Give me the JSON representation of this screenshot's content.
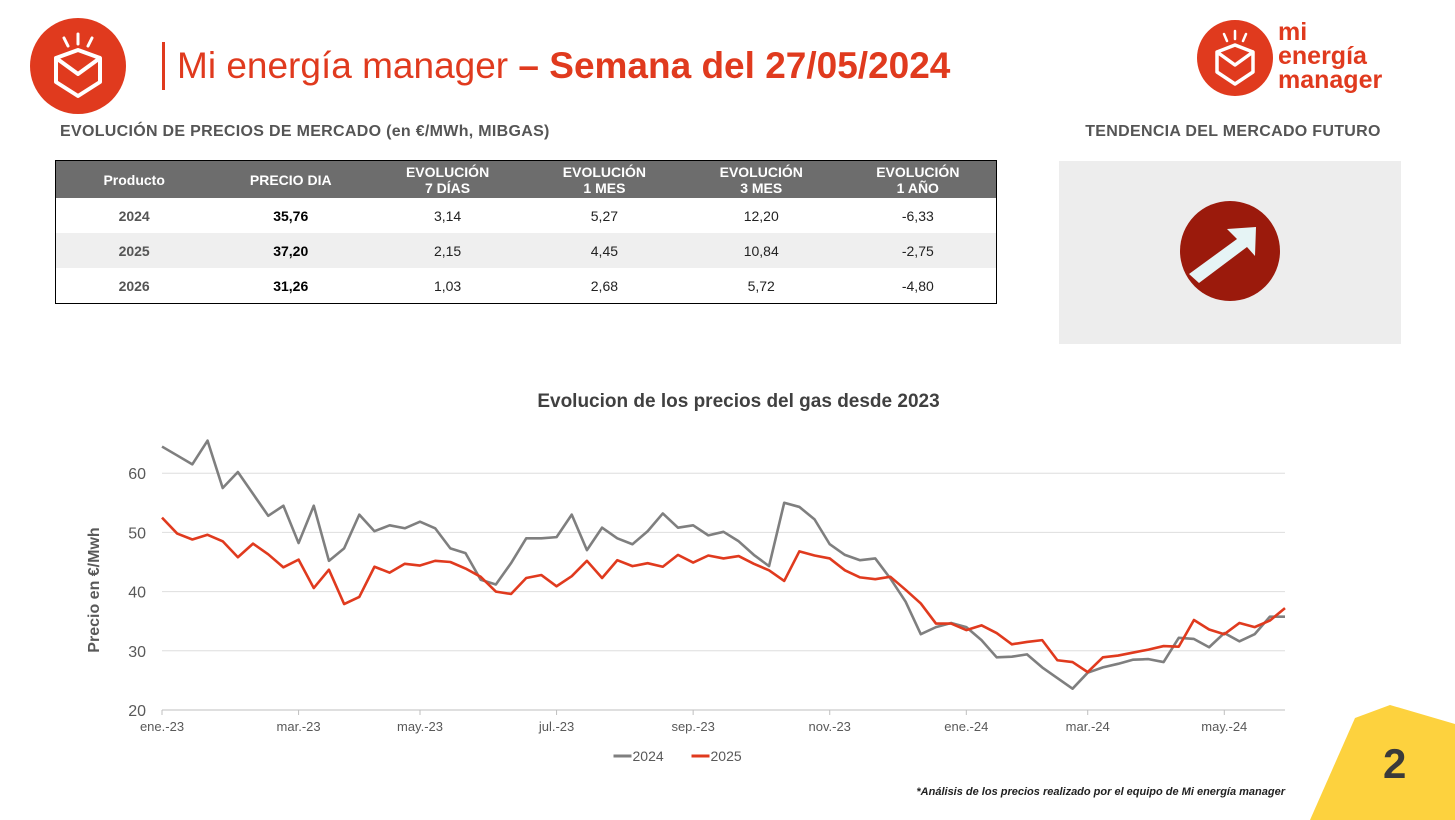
{
  "header": {
    "title": "Mi energía manager",
    "subtitle": "– Semana del 27/05/2024",
    "logo": [
      "mi",
      "energía",
      "manager"
    ],
    "page": "2"
  },
  "table": {
    "title": "EVOLUCIÓN DE PRECIOS DE MERCADO (en €/MWh, MIBGAS)",
    "columns": [
      [
        "Producto"
      ],
      [
        "PRECIO DIA"
      ],
      [
        "EVOLUCIÓN",
        "7 DÍAS"
      ],
      [
        "EVOLUCIÓN",
        "1 MES"
      ],
      [
        "EVOLUCIÓN",
        "3 MES"
      ],
      [
        "EVOLUCIÓN",
        "1 AÑO"
      ]
    ],
    "rows": [
      [
        "2024",
        "35,76",
        "3,14",
        "5,27",
        "12,20",
        "-6,33"
      ],
      [
        "2025",
        "37,20",
        "2,15",
        "4,45",
        "10,84",
        "-2,75"
      ],
      [
        "2026",
        "31,26",
        "1,03",
        "2,68",
        "5,72",
        "-4,80"
      ]
    ]
  },
  "trend": {
    "title": "TENDENCIA DEL MERCADO FUTURO"
  },
  "footnote": "*Análisis de los precios realizado por el equipo de Mi energía manager",
  "chart_data": {
    "type": "line",
    "title": "Evolucion de los precios del gas desde 2023",
    "y_label": "Precio en €/Mwh",
    "categories": [
      "ene.-23",
      null,
      null,
      null,
      null,
      null,
      null,
      null,
      null,
      "mar.-23",
      null,
      null,
      null,
      null,
      null,
      null,
      null,
      "may.-23",
      null,
      null,
      null,
      null,
      null,
      null,
      null,
      null,
      "jul.-23",
      null,
      null,
      null,
      null,
      null,
      null,
      null,
      null,
      "sep.-23",
      null,
      null,
      null,
      null,
      null,
      null,
      null,
      null,
      "nov.-23",
      null,
      null,
      null,
      null,
      null,
      null,
      null,
      null,
      "ene.-24",
      null,
      null,
      null,
      null,
      null,
      null,
      null,
      "mar.-24",
      null,
      null,
      null,
      null,
      null,
      null,
      null,
      null,
      "may.-24",
      null,
      null,
      null,
      null
    ],
    "series": [
      {
        "name": "2024",
        "color": "#7f7f7f",
        "values": [
          64.5,
          63,
          61.5,
          65.5,
          57.5,
          60.2,
          56.5,
          52.8,
          54.5,
          48.2,
          54.5,
          45.2,
          47.3,
          53,
          50.2,
          51.2,
          50.7,
          51.8,
          50.7,
          47.3,
          46.5,
          42,
          41.2,
          44.8,
          49,
          49,
          49.2,
          53,
          47,
          50.8,
          49,
          48,
          50.2,
          53.2,
          50.8,
          51.2,
          49.5,
          50.1,
          48.5,
          46.2,
          44.3,
          55,
          54.3,
          52.2,
          48,
          46.2,
          45.3,
          45.6,
          42.2,
          38.3,
          32.8,
          34,
          34.7,
          34,
          31.8,
          28.9,
          29,
          29.4,
          27.2,
          25.4,
          23.6,
          26.3,
          27.2,
          27.8,
          28.5,
          28.6,
          28.1,
          32.2,
          32,
          30.6,
          33,
          31.6,
          32.8,
          35.76,
          35.76
        ]
      },
      {
        "name": "2025",
        "color": "#e03a1e",
        "values": [
          52.5,
          49.8,
          48.8,
          49.6,
          48.5,
          45.8,
          48.1,
          46.3,
          44.1,
          45.4,
          40.6,
          43.7,
          37.9,
          39.1,
          44.2,
          43.2,
          44.7,
          44.4,
          45.2,
          45,
          43.9,
          42.5,
          40,
          39.6,
          42.3,
          42.8,
          40.9,
          42.6,
          45.2,
          42.3,
          45.3,
          44.3,
          44.8,
          44.2,
          46.2,
          44.9,
          46.1,
          45.6,
          46,
          44.7,
          43.6,
          41.8,
          46.8,
          46.1,
          45.6,
          43.6,
          42.4,
          42.1,
          42.5,
          40.3,
          38,
          34.6,
          34.6,
          33.5,
          34.3,
          33,
          31.1,
          31.5,
          31.8,
          28.4,
          28.1,
          26.4,
          28.9,
          29.2,
          29.7,
          30.2,
          30.8,
          30.7,
          35.2,
          33.6,
          32.8,
          34.7,
          34,
          35.1,
          37.2
        ]
      }
    ],
    "ylim": [
      20,
      70
    ],
    "yticks": [
      20,
      30,
      40,
      50,
      60
    ],
    "grid": true,
    "legend": "bottom"
  }
}
